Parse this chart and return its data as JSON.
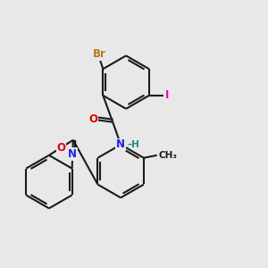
{
  "bg_color": "#e8e8e8",
  "bond_color": "#1a1a1a",
  "bond_lw": 1.5,
  "double_sep": 2.5,
  "atom_colors": {
    "Br": "#b87820",
    "I": "#dd00dd",
    "O": "#dd0000",
    "N": "#2222ee",
    "H": "#208888",
    "C": "#1a1a1a"
  },
  "font_size": 8.5,
  "font_size_small": 7.5
}
